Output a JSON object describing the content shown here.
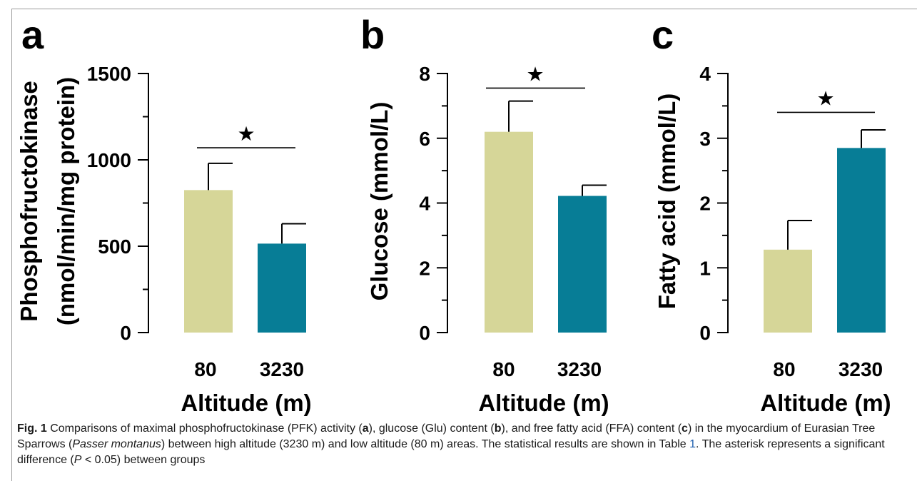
{
  "colors": {
    "low": "#d6d698",
    "high": "#077d96",
    "axis": "#000000",
    "ref_link": "#1f5fae"
  },
  "chart_data": [
    {
      "panel": "a",
      "type": "bar",
      "categories": [
        "80",
        "3230"
      ],
      "values": [
        825,
        515
      ],
      "errors": [
        155,
        115
      ],
      "ylabel": "Phosphofructokinase (nmol/min/mg protein)",
      "ylabel_line1": "Phosphofructokinase",
      "ylabel_line2": "(nmol/min/mg protein)",
      "xlabel": "Altitude (m)",
      "ylim": [
        0,
        1500
      ],
      "yticks": [
        0,
        500,
        1000,
        1500
      ],
      "tick_labels": [
        "0",
        "500",
        "1000",
        "1500"
      ],
      "minor_step": 250,
      "significance": "★",
      "sig_value": 1070,
      "grid": false
    },
    {
      "panel": "b",
      "type": "bar",
      "categories": [
        "80",
        "3230"
      ],
      "values": [
        6.2,
        4.22
      ],
      "errors": [
        0.95,
        0.33
      ],
      "ylabel": "Glucose (mmol/L)",
      "ylabel_line1": "Glucose (mmol/L)",
      "ylabel_line2": "",
      "xlabel": "Altitude (m)",
      "ylim": [
        0,
        8
      ],
      "yticks": [
        0,
        2,
        4,
        6,
        8
      ],
      "tick_labels": [
        "0",
        "2",
        "4",
        "6",
        "8"
      ],
      "minor_step": 1,
      "significance": "★",
      "sig_value": 7.55,
      "grid": false
    },
    {
      "panel": "c",
      "type": "bar",
      "categories": [
        "80",
        "3230"
      ],
      "values": [
        1.28,
        2.85
      ],
      "errors": [
        0.45,
        0.28
      ],
      "ylabel": "Fatty acid (mmol/L)",
      "ylabel_line1": "Fatty acid (mmol/L)",
      "ylabel_line2": "",
      "xlabel": "Altitude (m)",
      "ylim": [
        0,
        4
      ],
      "yticks": [
        0,
        1,
        2,
        3,
        4
      ],
      "tick_labels": [
        "0",
        "1",
        "2",
        "3",
        "4"
      ],
      "minor_step": 0.5,
      "significance": "★",
      "sig_value": 3.4,
      "grid": false
    }
  ],
  "caption": {
    "fig_label": "Fig. 1",
    "text_1": "  Comparisons of maximal phosphofructokinase (PFK) activity (",
    "p_a": "a",
    "text_2": "), glucose (Glu) content (",
    "p_b": "b",
    "text_3": "), and free fatty acid (FFA) content (",
    "p_c": "c",
    "text_4": ") in the myocardium of Eurasian Tree Sparrows (",
    "species": "Passer montanus",
    "text_5": ") between high altitude (3230 m) and low altitude (80 m) areas. The statistical results are shown in Table ",
    "table_ref": "1",
    "text_6": ". The asterisk represents a significant difference (",
    "p_symbol": "P",
    "text_7": " < 0.05) between groups"
  }
}
